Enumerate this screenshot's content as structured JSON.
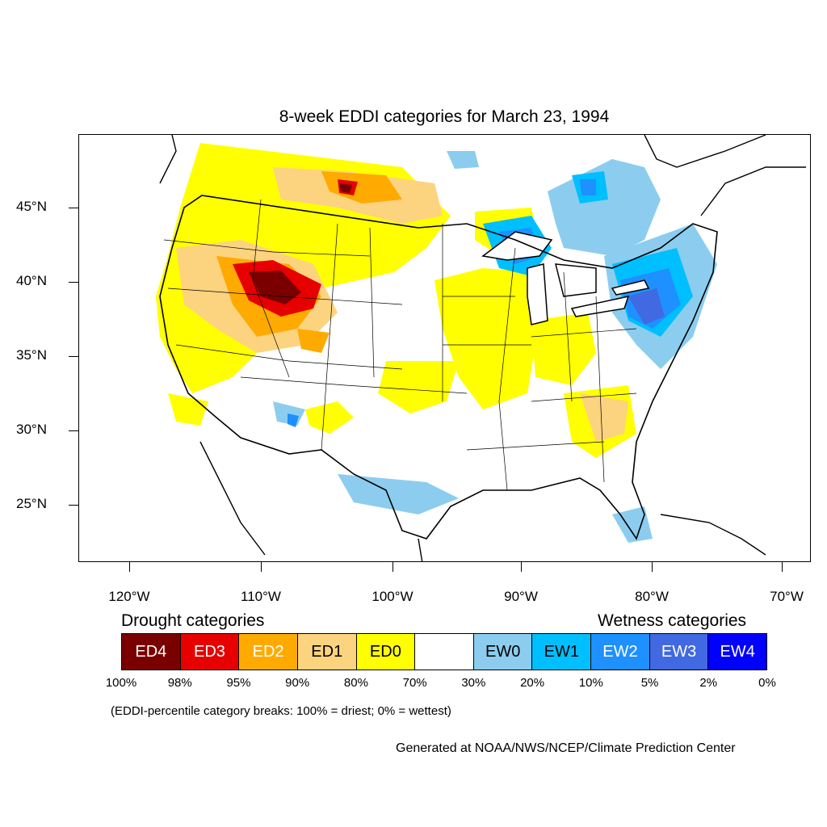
{
  "title": "8-week EDDI categories for March 23, 1994",
  "lat_labels": [
    "45°N",
    "40°N",
    "35°N",
    "30°N",
    "25°N"
  ],
  "lon_labels": [
    "120°W",
    "110°W",
    "100°W",
    "90°W",
    "80°W",
    "70°W"
  ],
  "drought_heading": "Drought categories",
  "wetness_heading": "Wetness categories",
  "legend": [
    {
      "label": "ED4",
      "color": "#7a0000",
      "text_color": "#ffffff"
    },
    {
      "label": "ED3",
      "color": "#e60000",
      "text_color": "#ffffff"
    },
    {
      "label": "ED2",
      "color": "#ffaa00",
      "text_color": "#ffffff"
    },
    {
      "label": "ED1",
      "color": "#fcd37f",
      "text_color": "#000000"
    },
    {
      "label": "ED0",
      "color": "#ffff00",
      "text_color": "#000000"
    },
    {
      "label": "",
      "color": "#ffffff",
      "text_color": "#000000"
    },
    {
      "label": "EW0",
      "color": "#8ccdef",
      "text_color": "#000000"
    },
    {
      "label": "EW1",
      "color": "#00bfff",
      "text_color": "#000000"
    },
    {
      "label": "EW2",
      "color": "#1e90ff",
      "text_color": "#ffffff"
    },
    {
      "label": "EW3",
      "color": "#4169e1",
      "text_color": "#ffffff"
    },
    {
      "label": "EW4",
      "color": "#0000ff",
      "text_color": "#ffffff"
    }
  ],
  "percentiles": [
    "100%",
    "98%",
    "95%",
    "90%",
    "80%",
    "70%",
    "30%",
    "20%",
    "10%",
    "5%",
    "2%",
    "0%"
  ],
  "note": "(EDDI-percentile category breaks: 100% = driest; 0% = wettest)",
  "credit": "Generated at NOAA/NWS/NCEP/Climate Prediction Center"
}
